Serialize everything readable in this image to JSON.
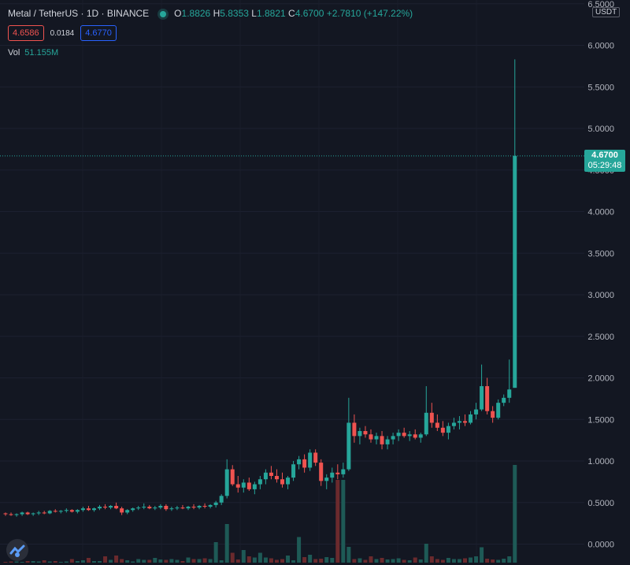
{
  "legend": {
    "symbol": "Metal / TetherUS · 1D · BINANCE",
    "o_label": "O",
    "o": "1.8826",
    "h_label": "H",
    "h": "5.8353",
    "l_label": "L",
    "l": "1.8821",
    "c_label": "C",
    "c": "4.6700",
    "change": "+2.7810 (+147.22%)",
    "bid": "4.6586",
    "spread": "0.0184",
    "ask": "4.6770",
    "vol_label": "Vol",
    "vol": "51.155M"
  },
  "price_axis": {
    "unit": "USDT",
    "ticks": [
      "6.5000",
      "6.0000",
      "5.5000",
      "5.0000",
      "4.5000",
      "4.0000",
      "3.5000",
      "3.0000",
      "2.5000",
      "2.0000",
      "1.5000",
      "1.0000",
      "0.5000",
      "0.0000"
    ],
    "current_price": "4.6700",
    "countdown": "05:29:48"
  },
  "colors": {
    "up": "#26a69a",
    "down": "#ef5350",
    "volume_up": "#1e5a56",
    "volume_down": "#6b2a2d",
    "background": "#131722"
  },
  "icons": {
    "logo": "tradingview-logo-icon"
  },
  "chart_data": {
    "type": "candlestick",
    "ylim": [
      0,
      6.5
    ],
    "current": 4.67,
    "candles": [
      [
        0.37,
        0.38,
        0.34,
        0.36
      ],
      [
        0.36,
        0.38,
        0.34,
        0.35
      ],
      [
        0.35,
        0.37,
        0.33,
        0.36
      ],
      [
        0.36,
        0.39,
        0.34,
        0.38
      ],
      [
        0.38,
        0.39,
        0.35,
        0.36
      ],
      [
        0.36,
        0.38,
        0.34,
        0.37
      ],
      [
        0.37,
        0.4,
        0.35,
        0.38
      ],
      [
        0.38,
        0.4,
        0.36,
        0.37
      ],
      [
        0.37,
        0.41,
        0.36,
        0.4
      ],
      [
        0.4,
        0.42,
        0.38,
        0.39
      ],
      [
        0.39,
        0.41,
        0.37,
        0.4
      ],
      [
        0.4,
        0.43,
        0.38,
        0.41
      ],
      [
        0.41,
        0.42,
        0.38,
        0.39
      ],
      [
        0.39,
        0.42,
        0.37,
        0.41
      ],
      [
        0.41,
        0.45,
        0.39,
        0.43
      ],
      [
        0.43,
        0.46,
        0.4,
        0.41
      ],
      [
        0.41,
        0.44,
        0.39,
        0.43
      ],
      [
        0.43,
        0.47,
        0.41,
        0.45
      ],
      [
        0.45,
        0.48,
        0.42,
        0.44
      ],
      [
        0.44,
        0.47,
        0.42,
        0.46
      ],
      [
        0.46,
        0.5,
        0.42,
        0.43
      ],
      [
        0.43,
        0.45,
        0.35,
        0.38
      ],
      [
        0.38,
        0.42,
        0.36,
        0.41
      ],
      [
        0.41,
        0.44,
        0.39,
        0.43
      ],
      [
        0.43,
        0.46,
        0.41,
        0.44
      ],
      [
        0.44,
        0.49,
        0.42,
        0.45
      ],
      [
        0.45,
        0.47,
        0.42,
        0.43
      ],
      [
        0.43,
        0.46,
        0.41,
        0.44
      ],
      [
        0.44,
        0.48,
        0.42,
        0.46
      ],
      [
        0.46,
        0.48,
        0.4,
        0.42
      ],
      [
        0.42,
        0.45,
        0.4,
        0.43
      ],
      [
        0.43,
        0.46,
        0.41,
        0.44
      ],
      [
        0.44,
        0.47,
        0.42,
        0.43
      ],
      [
        0.43,
        0.46,
        0.41,
        0.45
      ],
      [
        0.45,
        0.48,
        0.42,
        0.44
      ],
      [
        0.44,
        0.47,
        0.42,
        0.46
      ],
      [
        0.46,
        0.49,
        0.43,
        0.45
      ],
      [
        0.45,
        0.48,
        0.43,
        0.47
      ],
      [
        0.47,
        0.52,
        0.44,
        0.5
      ],
      [
        0.5,
        0.6,
        0.47,
        0.58
      ],
      [
        0.58,
        1.02,
        0.55,
        0.9
      ],
      [
        0.9,
        0.95,
        0.7,
        0.72
      ],
      [
        0.72,
        0.82,
        0.62,
        0.68
      ],
      [
        0.68,
        0.78,
        0.62,
        0.74
      ],
      [
        0.74,
        0.8,
        0.64,
        0.66
      ],
      [
        0.66,
        0.75,
        0.6,
        0.72
      ],
      [
        0.72,
        0.82,
        0.66,
        0.78
      ],
      [
        0.78,
        0.9,
        0.72,
        0.86
      ],
      [
        0.86,
        0.94,
        0.78,
        0.82
      ],
      [
        0.82,
        0.9,
        0.74,
        0.78
      ],
      [
        0.78,
        0.86,
        0.68,
        0.72
      ],
      [
        0.72,
        0.82,
        0.66,
        0.8
      ],
      [
        0.8,
        1.0,
        0.76,
        0.96
      ],
      [
        0.96,
        1.06,
        0.9,
        1.02
      ],
      [
        1.02,
        1.08,
        0.86,
        0.92
      ],
      [
        0.92,
        1.14,
        0.88,
        1.1
      ],
      [
        1.1,
        1.14,
        0.94,
        0.98
      ],
      [
        0.98,
        1.02,
        0.7,
        0.76
      ],
      [
        0.76,
        0.84,
        0.66,
        0.8
      ],
      [
        0.8,
        0.92,
        0.74,
        0.86
      ],
      [
        0.86,
        0.96,
        0.78,
        0.84
      ],
      [
        0.84,
        0.98,
        0.8,
        0.9
      ],
      [
        0.9,
        1.76,
        0.88,
        1.46
      ],
      [
        1.46,
        1.56,
        1.22,
        1.3
      ],
      [
        1.3,
        1.4,
        1.2,
        1.36
      ],
      [
        1.36,
        1.42,
        1.28,
        1.32
      ],
      [
        1.32,
        1.38,
        1.22,
        1.26
      ],
      [
        1.26,
        1.34,
        1.2,
        1.3
      ],
      [
        1.3,
        1.36,
        1.14,
        1.2
      ],
      [
        1.2,
        1.3,
        1.14,
        1.26
      ],
      [
        1.26,
        1.34,
        1.2,
        1.3
      ],
      [
        1.3,
        1.38,
        1.24,
        1.34
      ],
      [
        1.34,
        1.4,
        1.28,
        1.3
      ],
      [
        1.3,
        1.36,
        1.24,
        1.32
      ],
      [
        1.32,
        1.38,
        1.26,
        1.28
      ],
      [
        1.28,
        1.34,
        1.22,
        1.32
      ],
      [
        1.32,
        1.9,
        1.3,
        1.58
      ],
      [
        1.58,
        1.7,
        1.4,
        1.46
      ],
      [
        1.46,
        1.56,
        1.36,
        1.4
      ],
      [
        1.4,
        1.48,
        1.3,
        1.34
      ],
      [
        1.34,
        1.46,
        1.26,
        1.42
      ],
      [
        1.42,
        1.52,
        1.38,
        1.46
      ],
      [
        1.46,
        1.54,
        1.38,
        1.48
      ],
      [
        1.48,
        1.56,
        1.42,
        1.46
      ],
      [
        1.46,
        1.6,
        1.44,
        1.56
      ],
      [
        1.56,
        1.7,
        1.5,
        1.62
      ],
      [
        1.62,
        2.16,
        1.6,
        1.9
      ],
      [
        1.9,
        2.0,
        1.56,
        1.6
      ],
      [
        1.6,
        1.66,
        1.46,
        1.52
      ],
      [
        1.52,
        1.74,
        1.5,
        1.7
      ],
      [
        1.7,
        1.8,
        1.66,
        1.76
      ],
      [
        1.76,
        2.22,
        1.7,
        1.86
      ],
      [
        1.88,
        5.83,
        1.88,
        4.67
      ]
    ],
    "volume_max_label": "51.155M",
    "volumes": [
      0.2,
      0.3,
      0.3,
      0.2,
      0.4,
      0.4,
      0.3,
      0.6,
      0.3,
      0.4,
      0.2,
      0.3,
      0.9,
      0.4,
      0.6,
      1.2,
      0.4,
      0.4,
      1.6,
      0.7,
      1.8,
      0.9,
      0.6,
      0.3,
      0.9,
      0.7,
      0.7,
      1.2,
      0.8,
      0.7,
      0.9,
      0.7,
      0.4,
      1.3,
      0.9,
      0.9,
      1.1,
      0.9,
      5.2,
      0.6,
      9.8,
      2.5,
      0.8,
      3.2,
      1.6,
      1.3,
      2.5,
      1.3,
      1.1,
      0.7,
      0.9,
      1.8,
      0.6,
      6.5,
      1.4,
      2.0,
      0.9,
      1.0,
      1.4,
      1.2,
      21.0,
      21.0,
      4.0,
      0.9,
      1.1,
      0.7,
      1.6,
      0.9,
      1.2,
      0.8,
      0.9,
      1.1,
      0.7,
      0.6,
      1.3,
      0.8,
      4.8,
      1.6,
      0.9,
      0.7,
      1.2,
      0.9,
      0.9,
      1.1,
      1.3,
      1.6,
      3.9,
      1.0,
      0.8,
      0.7,
      1.0,
      1.6,
      24.8
    ]
  }
}
